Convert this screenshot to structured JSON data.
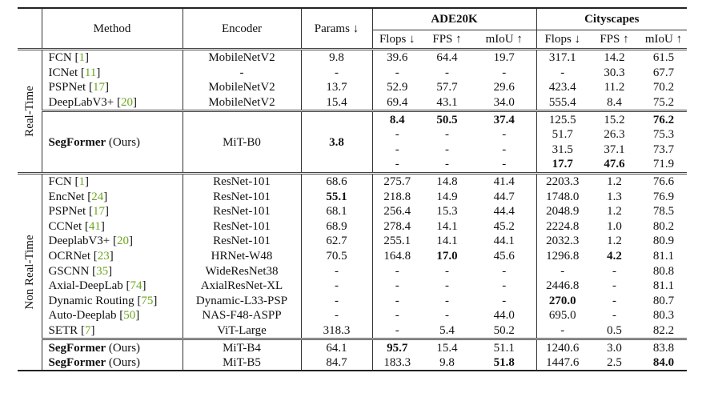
{
  "header": {
    "method": "Method",
    "encoder": "Encoder",
    "params": "Params ↓",
    "ade": "ADE20K",
    "city": "Cityscapes",
    "sub": [
      "Flops ↓",
      "FPS ↑",
      "mIoU ↑",
      "Flops ↓",
      "FPS ↑",
      "mIoU ↑"
    ]
  },
  "groups": [
    {
      "label": "Real-Time",
      "rows": [
        {
          "name": "FCN",
          "ref": "1",
          "encoder": "MobileNetV2",
          "params": "9.8",
          "vals": [
            "39.6",
            "64.4",
            "19.7",
            "317.1",
            "14.2",
            "61.5"
          ],
          "bold": []
        },
        {
          "name": "ICNet",
          "ref": "11",
          "encoder": "-",
          "params": "-",
          "vals": [
            "-",
            "-",
            "-",
            "-",
            "30.3",
            "67.7"
          ],
          "bold": []
        },
        {
          "name": "PSPNet",
          "ref": "17",
          "encoder": "MobileNetV2",
          "params": "13.7",
          "vals": [
            "52.9",
            "57.7",
            "29.6",
            "423.4",
            "11.2",
            "70.2"
          ],
          "bold": []
        },
        {
          "name": "DeepLabV3+",
          "ref": "20",
          "encoder": "MobileNetV2",
          "params": "15.4",
          "vals": [
            "69.4",
            "43.1",
            "34.0",
            "555.4",
            "8.4",
            "75.2"
          ],
          "bold": []
        }
      ],
      "ours": {
        "name": "SegFormer",
        "suffix": "(Ours)",
        "encoder": "MiT-B0",
        "params": "3.8",
        "params_bold": true,
        "rows": [
          {
            "vals": [
              "8.4",
              "50.5",
              "37.4",
              "125.5",
              "15.2",
              "76.2"
            ],
            "bold": [
              0,
              1,
              2,
              5
            ]
          },
          {
            "vals": [
              "-",
              "-",
              "-",
              "51.7",
              "26.3",
              "75.3"
            ],
            "bold": []
          },
          {
            "vals": [
              "-",
              "-",
              "-",
              "31.5",
              "37.1",
              "73.7"
            ],
            "bold": []
          },
          {
            "vals": [
              "-",
              "-",
              "-",
              "17.7",
              "47.6",
              "71.9"
            ],
            "bold": [
              3,
              4
            ]
          }
        ]
      }
    },
    {
      "label": "Non Real-Time",
      "rows": [
        {
          "name": "FCN",
          "ref": "1",
          "encoder": "ResNet-101",
          "params": "68.6",
          "vals": [
            "275.7",
            "14.8",
            "41.4",
            "2203.3",
            "1.2",
            "76.6"
          ],
          "bold": []
        },
        {
          "name": "EncNet",
          "ref": "24",
          "encoder": "ResNet-101",
          "params": "55.1",
          "params_bold": true,
          "vals": [
            "218.8",
            "14.9",
            "44.7",
            "1748.0",
            "1.3",
            "76.9"
          ],
          "bold": []
        },
        {
          "name": "PSPNet",
          "ref": "17",
          "encoder": "ResNet-101",
          "params": "68.1",
          "vals": [
            "256.4",
            "15.3",
            "44.4",
            "2048.9",
            "1.2",
            "78.5"
          ],
          "bold": []
        },
        {
          "name": "CCNet",
          "ref": "41",
          "encoder": "ResNet-101",
          "params": "68.9",
          "vals": [
            "278.4",
            "14.1",
            "45.2",
            "2224.8",
            "1.0",
            "80.2"
          ],
          "bold": []
        },
        {
          "name": "DeeplabV3+",
          "ref": "20",
          "encoder": "ResNet-101",
          "params": "62.7",
          "vals": [
            "255.1",
            "14.1",
            "44.1",
            "2032.3",
            "1.2",
            "80.9"
          ],
          "bold": []
        },
        {
          "name": "OCRNet",
          "ref": "23",
          "encoder": "HRNet-W48",
          "params": "70.5",
          "vals": [
            "164.8",
            "17.0",
            "45.6",
            "1296.8",
            "4.2",
            "81.1"
          ],
          "bold": [
            1,
            4
          ]
        },
        {
          "name": "GSCNN",
          "ref": "35",
          "encoder": "WideResNet38",
          "params": "-",
          "vals": [
            "-",
            "-",
            "-",
            "-",
            "-",
            "80.8"
          ],
          "bold": []
        },
        {
          "name": "Axial-DeepLab",
          "ref": "74",
          "encoder": "AxialResNet-XL",
          "params": "-",
          "vals": [
            "-",
            "-",
            "-",
            "2446.8",
            "-",
            "81.1"
          ],
          "bold": []
        },
        {
          "name": "Dynamic Routing",
          "ref": "75",
          "encoder": "Dynamic-L33-PSP",
          "params": "-",
          "vals": [
            "-",
            "-",
            "-",
            "270.0",
            "-",
            "80.7"
          ],
          "bold": [
            3
          ]
        },
        {
          "name": "Auto-Deeplab",
          "ref": "50",
          "encoder": "NAS-F48-ASPP",
          "params": "-",
          "vals": [
            "-",
            "-",
            "44.0",
            "695.0",
            "-",
            "80.3"
          ],
          "bold": []
        },
        {
          "name": "SETR",
          "ref": "7",
          "encoder": "ViT-Large",
          "params": "318.3",
          "vals": [
            "-",
            "5.4",
            "50.2",
            "-",
            "0.5",
            "82.2"
          ],
          "bold": []
        }
      ],
      "ours": {
        "name": "SegFormer",
        "suffix": "(Ours)",
        "rows": [
          {
            "encoder": "MiT-B4",
            "params": "64.1",
            "vals": [
              "95.7",
              "15.4",
              "51.1",
              "1240.6",
              "3.0",
              "83.8"
            ],
            "bold": [
              0
            ]
          },
          {
            "encoder": "MiT-B5",
            "params": "84.7",
            "vals": [
              "183.3",
              "9.8",
              "51.8",
              "1447.6",
              "2.5",
              "84.0"
            ],
            "bold": [
              2,
              5
            ]
          }
        ]
      }
    }
  ]
}
